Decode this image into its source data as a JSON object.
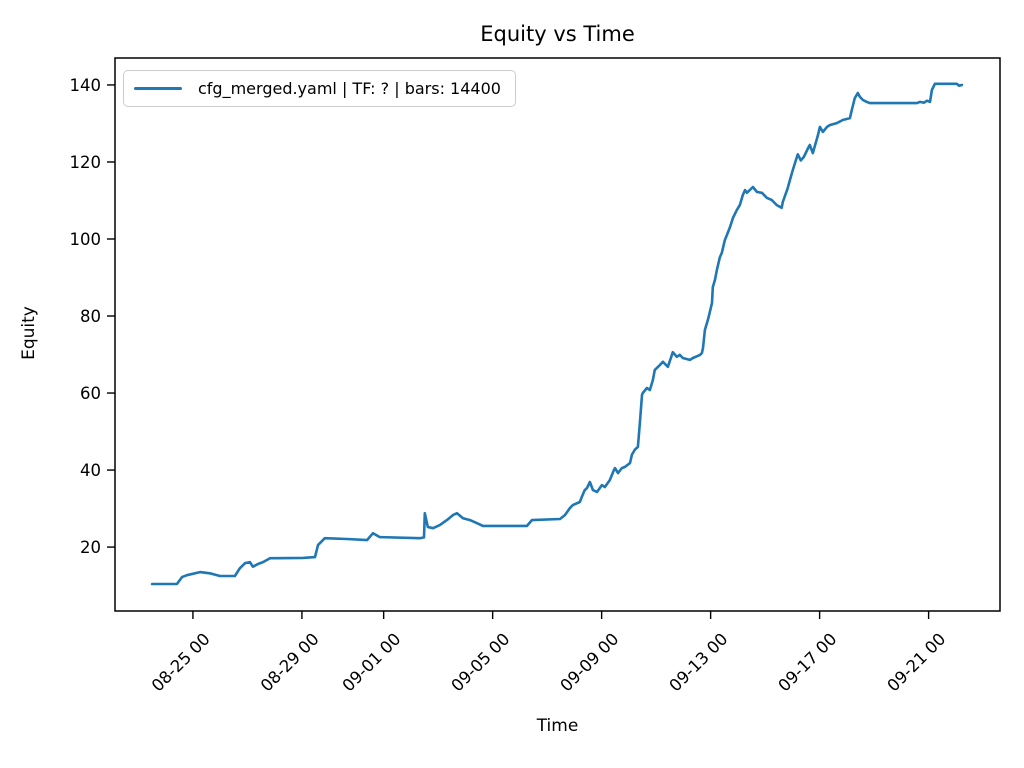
{
  "figure": {
    "background": "#ffffff",
    "text_color": "#000000"
  },
  "chart_data": {
    "type": "line",
    "title": "Equity vs Time",
    "xlabel": "Time",
    "ylabel": "Equity",
    "grid": false,
    "legend": {
      "position": "upper left",
      "entries": [
        {
          "label": "cfg_merged.yaml | TF: ? | bars: 14400",
          "color": "#1f77b4"
        }
      ]
    },
    "x_axis": {
      "unit": "days since 08-23 00:00",
      "range": [
        -0.86,
        31.62
      ],
      "ticks": [
        {
          "t": 2,
          "label": "08-25 00"
        },
        {
          "t": 6,
          "label": "08-29 00"
        },
        {
          "t": 9,
          "label": "09-01 00"
        },
        {
          "t": 13,
          "label": "09-05 00"
        },
        {
          "t": 17,
          "label": "09-09 00"
        },
        {
          "t": 21,
          "label": "09-13 00"
        },
        {
          "t": 25,
          "label": "09-17 00"
        },
        {
          "t": 29,
          "label": "09-21 00"
        }
      ],
      "tick_rotation_deg": 45
    },
    "y_axis": {
      "range": [
        3.4,
        147.0
      ],
      "ticks": [
        20,
        40,
        60,
        80,
        100,
        120,
        140
      ]
    },
    "series": [
      {
        "name": "cfg_merged.yaml | TF: ? | bars: 14400",
        "color": "#1f77b4",
        "line_width": 2.6,
        "points": [
          [
            0.5,
            10.4
          ],
          [
            1.41,
            10.4
          ],
          [
            1.6,
            12.2
          ],
          [
            1.78,
            12.7
          ],
          [
            2.26,
            13.5
          ],
          [
            2.62,
            13.2
          ],
          [
            2.99,
            12.5
          ],
          [
            3.54,
            12.5
          ],
          [
            3.72,
            14.5
          ],
          [
            3.91,
            15.8
          ],
          [
            4.09,
            16.1
          ],
          [
            4.2,
            14.9
          ],
          [
            4.39,
            15.6
          ],
          [
            4.57,
            16.1
          ],
          [
            4.83,
            17.1
          ],
          [
            5.08,
            17.1
          ],
          [
            6.04,
            17.2
          ],
          [
            6.48,
            17.4
          ],
          [
            6.59,
            20.5
          ],
          [
            6.84,
            22.3
          ],
          [
            7.65,
            22.1
          ],
          [
            8.39,
            21.8
          ],
          [
            8.61,
            23.6
          ],
          [
            8.86,
            22.6
          ],
          [
            10.33,
            22.3
          ],
          [
            10.48,
            22.5
          ],
          [
            10.51,
            28.8
          ],
          [
            10.62,
            25.2
          ],
          [
            10.81,
            24.9
          ],
          [
            11.06,
            25.7
          ],
          [
            11.32,
            27.0
          ],
          [
            11.54,
            28.3
          ],
          [
            11.69,
            28.8
          ],
          [
            11.91,
            27.5
          ],
          [
            12.17,
            27.0
          ],
          [
            12.53,
            25.9
          ],
          [
            12.64,
            25.5
          ],
          [
            14.26,
            25.5
          ],
          [
            14.44,
            27.0
          ],
          [
            15.47,
            27.3
          ],
          [
            15.65,
            28.3
          ],
          [
            15.83,
            30.1
          ],
          [
            15.94,
            30.9
          ],
          [
            16.2,
            31.7
          ],
          [
            16.27,
            33.0
          ],
          [
            16.38,
            34.8
          ],
          [
            16.46,
            35.3
          ],
          [
            16.57,
            36.9
          ],
          [
            16.68,
            34.8
          ],
          [
            16.83,
            34.3
          ],
          [
            17.01,
            36.1
          ],
          [
            17.12,
            35.6
          ],
          [
            17.3,
            37.4
          ],
          [
            17.45,
            40.0
          ],
          [
            17.49,
            40.5
          ],
          [
            17.6,
            39.2
          ],
          [
            17.74,
            40.5
          ],
          [
            17.85,
            40.8
          ],
          [
            18.04,
            41.8
          ],
          [
            18.11,
            44.0
          ],
          [
            18.22,
            45.3
          ],
          [
            18.33,
            46.0
          ],
          [
            18.4,
            52.0
          ],
          [
            18.48,
            59.5
          ],
          [
            18.51,
            60.0
          ],
          [
            18.66,
            61.3
          ],
          [
            18.77,
            60.8
          ],
          [
            18.88,
            63.4
          ],
          [
            18.95,
            66.0
          ],
          [
            19.14,
            67.3
          ],
          [
            19.25,
            68.1
          ],
          [
            19.43,
            66.8
          ],
          [
            19.58,
            69.9
          ],
          [
            19.61,
            70.6
          ],
          [
            19.76,
            69.4
          ],
          [
            19.87,
            69.9
          ],
          [
            19.98,
            69.1
          ],
          [
            20.24,
            68.6
          ],
          [
            20.35,
            69.1
          ],
          [
            20.61,
            69.9
          ],
          [
            20.68,
            70.4
          ],
          [
            20.72,
            71.7
          ],
          [
            20.79,
            76.4
          ],
          [
            20.9,
            79.0
          ],
          [
            20.97,
            81.0
          ],
          [
            21.05,
            83.4
          ],
          [
            21.08,
            87.5
          ],
          [
            21.16,
            89.4
          ],
          [
            21.23,
            92.0
          ],
          [
            21.34,
            95.3
          ],
          [
            21.41,
            96.4
          ],
          [
            21.52,
            99.7
          ],
          [
            21.63,
            101.6
          ],
          [
            21.71,
            103.1
          ],
          [
            21.82,
            105.5
          ],
          [
            21.96,
            107.5
          ],
          [
            22.07,
            108.8
          ],
          [
            22.18,
            111.4
          ],
          [
            22.26,
            112.7
          ],
          [
            22.33,
            112.0
          ],
          [
            22.55,
            113.5
          ],
          [
            22.7,
            112.2
          ],
          [
            22.88,
            112.0
          ],
          [
            23.06,
            110.7
          ],
          [
            23.25,
            110.1
          ],
          [
            23.43,
            108.8
          ],
          [
            23.61,
            108.1
          ],
          [
            23.65,
            109.6
          ],
          [
            23.83,
            113.2
          ],
          [
            23.91,
            115.3
          ],
          [
            24.02,
            118.0
          ],
          [
            24.13,
            120.5
          ],
          [
            24.2,
            122.0
          ],
          [
            24.31,
            120.4
          ],
          [
            24.42,
            121.3
          ],
          [
            24.57,
            123.5
          ],
          [
            24.64,
            124.4
          ],
          [
            24.75,
            122.3
          ],
          [
            24.94,
            127.0
          ],
          [
            25.01,
            129.1
          ],
          [
            25.12,
            127.8
          ],
          [
            25.27,
            129.1
          ],
          [
            25.38,
            129.6
          ],
          [
            25.63,
            130.1
          ],
          [
            25.85,
            130.9
          ],
          [
            26.11,
            131.4
          ],
          [
            26.18,
            133.5
          ],
          [
            26.29,
            136.6
          ],
          [
            26.4,
            137.9
          ],
          [
            26.48,
            136.9
          ],
          [
            26.59,
            136.1
          ],
          [
            26.73,
            135.6
          ],
          [
            26.84,
            135.3
          ],
          [
            28.57,
            135.3
          ],
          [
            28.68,
            135.6
          ],
          [
            28.83,
            135.4
          ],
          [
            28.94,
            135.9
          ],
          [
            29.05,
            135.6
          ],
          [
            29.12,
            138.7
          ],
          [
            29.23,
            140.3
          ],
          [
            30.04,
            140.3
          ],
          [
            30.11,
            139.8
          ],
          [
            30.22,
            140.0
          ]
        ]
      }
    ],
    "colors": {
      "line": "#1f77b4",
      "spine": "#000000",
      "legend_border": "#cccccc",
      "tick_text": "#000000"
    }
  }
}
